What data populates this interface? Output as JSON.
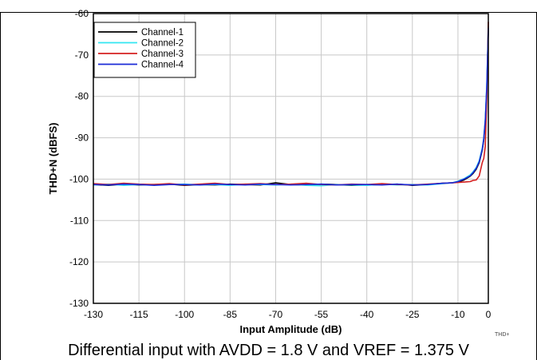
{
  "caption": "Differential input with AVDD = 1.8 V and VREF = 1.375 V",
  "figure_id": "THD+",
  "chart_data": {
    "type": "line",
    "title": "",
    "xlabel": "Input Amplitude (dB)",
    "ylabel": "THD+N (dBFS)",
    "xlim": [
      -130,
      0
    ],
    "ylim": [
      -130,
      -60
    ],
    "xticks": [
      -130,
      -115,
      -100,
      -85,
      -70,
      -55,
      -40,
      -25,
      -10,
      0
    ],
    "yticks": [
      -60,
      -70,
      -80,
      -90,
      -100,
      -110,
      -120,
      -130
    ],
    "grid": true,
    "legend_position": "top-left",
    "series": [
      {
        "name": "Channel-1",
        "color": "#000000",
        "x": [
          -130,
          -125,
          -120,
          -115,
          -110,
          -105,
          -100,
          -95,
          -90,
          -85,
          -80,
          -75,
          -70,
          -65,
          -60,
          -55,
          -50,
          -45,
          -40,
          -35,
          -30,
          -25,
          -20,
          -15,
          -12,
          -10,
          -8,
          -6,
          -5,
          -4,
          -3,
          -2,
          -1.5,
          -1,
          -0.5,
          0
        ],
        "y": [
          -101.3,
          -101.5,
          -101.2,
          -101.4,
          -101.3,
          -101.2,
          -101.5,
          -101.3,
          -101.4,
          -101.2,
          -101.3,
          -101.4,
          -100.9,
          -101.3,
          -101.4,
          -101.2,
          -101.3,
          -101.5,
          -101.4,
          -101.3,
          -101.2,
          -101.5,
          -101.3,
          -101.0,
          -100.9,
          -100.7,
          -100.2,
          -99.3,
          -98.6,
          -97.6,
          -96.0,
          -93.0,
          -90.5,
          -86.0,
          -78.0,
          -64.0
        ]
      },
      {
        "name": "Channel-2",
        "color": "#33e6f2",
        "x": [
          -130,
          -125,
          -120,
          -115,
          -110,
          -105,
          -100,
          -95,
          -90,
          -85,
          -80,
          -75,
          -70,
          -65,
          -60,
          -55,
          -50,
          -45,
          -40,
          -35,
          -30,
          -25,
          -20,
          -15,
          -12,
          -10,
          -8,
          -6,
          -5,
          -4,
          -3,
          -2,
          -1.5,
          -1,
          -0.5,
          0
        ],
        "y": [
          -101.4,
          -101.2,
          -101.5,
          -101.3,
          -101.4,
          -101.3,
          -101.2,
          -101.4,
          -101.3,
          -101.5,
          -101.2,
          -101.3,
          -101.4,
          -101.2,
          -101.5,
          -101.6,
          -101.3,
          -101.4,
          -101.5,
          -101.2,
          -101.4,
          -101.3,
          -101.4,
          -101.1,
          -100.9,
          -100.5,
          -99.9,
          -99.0,
          -98.2,
          -97.2,
          -95.5,
          -92.5,
          -90.0,
          -85.5,
          -77.0,
          -63.0
        ]
      },
      {
        "name": "Channel-3",
        "color": "#d42020",
        "x": [
          -130,
          -125,
          -120,
          -115,
          -110,
          -105,
          -100,
          -95,
          -90,
          -85,
          -80,
          -75,
          -70,
          -65,
          -60,
          -55,
          -50,
          -45,
          -40,
          -35,
          -30,
          -25,
          -20,
          -15,
          -12,
          -10,
          -8,
          -6,
          -5,
          -4,
          -3,
          -2,
          -1.5,
          -1,
          -0.5,
          0
        ],
        "y": [
          -101.1,
          -101.3,
          -101.0,
          -101.2,
          -101.3,
          -101.1,
          -101.4,
          -101.2,
          -101.0,
          -101.3,
          -101.2,
          -101.1,
          -101.3,
          -101.2,
          -101.0,
          -101.3,
          -101.4,
          -101.2,
          -101.3,
          -101.1,
          -101.3,
          -101.4,
          -101.2,
          -101.0,
          -100.9,
          -100.8,
          -100.7,
          -100.6,
          -100.3,
          -100.2,
          -99.2,
          -96.0,
          -95.0,
          -92.0,
          -80.0,
          -62.0
        ]
      },
      {
        "name": "Channel-4",
        "color": "#1c2bd6",
        "x": [
          -130,
          -125,
          -120,
          -115,
          -110,
          -105,
          -100,
          -95,
          -90,
          -85,
          -80,
          -75,
          -70,
          -65,
          -60,
          -55,
          -50,
          -45,
          -40,
          -35,
          -30,
          -25,
          -20,
          -15,
          -12,
          -10,
          -8,
          -6,
          -5,
          -4,
          -3,
          -2,
          -1.5,
          -1,
          -0.5,
          0
        ],
        "y": [
          -101.3,
          -101.4,
          -101.2,
          -101.3,
          -101.5,
          -101.3,
          -101.3,
          -101.4,
          -101.2,
          -101.3,
          -101.4,
          -101.2,
          -101.3,
          -101.4,
          -101.3,
          -101.2,
          -101.4,
          -101.3,
          -101.3,
          -101.4,
          -101.2,
          -101.4,
          -101.3,
          -101.0,
          -100.9,
          -100.6,
          -100.0,
          -99.2,
          -98.4,
          -97.4,
          -95.8,
          -92.8,
          -90.2,
          -85.8,
          -77.5,
          -63.5
        ]
      }
    ]
  }
}
